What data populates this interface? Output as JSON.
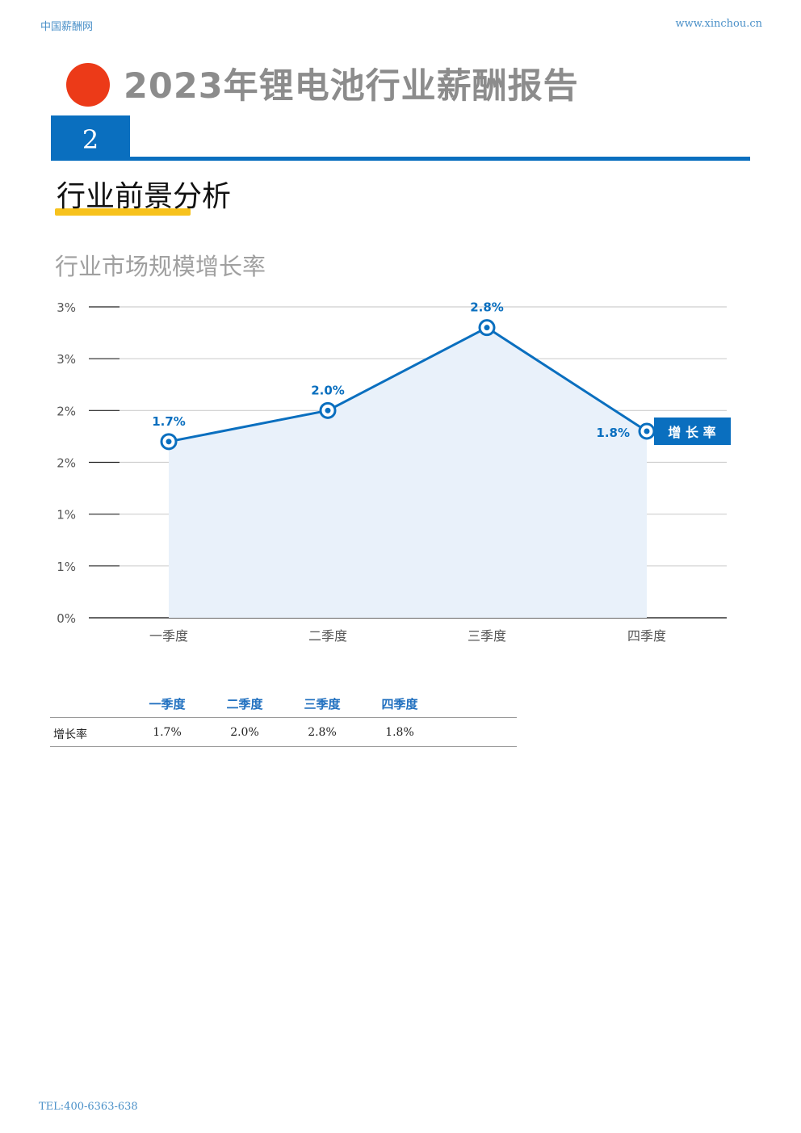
{
  "header": {
    "site_name": "中国薪酬网",
    "site_url": "www.xinchou.cn"
  },
  "report": {
    "title": "2023年锂电池行业薪酬报告",
    "section_number": "2",
    "section_title": "行业前景分析"
  },
  "chart_title": "行业市场规模增长率",
  "colors": {
    "accent": "#0a6fbf",
    "dot": "#ec3a18",
    "underline": "#f7c21d",
    "area": "#e9f1fa"
  },
  "chart_data": {
    "type": "area",
    "categories": [
      "一季度",
      "二季度",
      "三季度",
      "四季度"
    ],
    "series": [
      {
        "name": "增 长 率",
        "values": [
          1.7,
          2.0,
          2.8,
          1.8
        ],
        "labels": [
          "1.7%",
          "2.0%",
          "2.8%",
          "1.8%"
        ]
      }
    ],
    "ylim": [
      0,
      3
    ],
    "yticks": [
      0,
      0.5,
      1,
      1.5,
      2,
      2.5,
      3
    ],
    "ytick_labels": [
      "0%",
      "1%",
      "1%",
      "2%",
      "2%",
      "3%",
      "3%"
    ],
    "grid": true,
    "legend": "right"
  },
  "table": {
    "headers": [
      "一季度",
      "二季度",
      "三季度",
      "四季度"
    ],
    "rows": [
      {
        "label": "增长率",
        "values": [
          "1.7%",
          "2.0%",
          "2.8%",
          "1.8%"
        ]
      }
    ]
  },
  "footer": {
    "tel": "TEL:400-6363-638"
  }
}
